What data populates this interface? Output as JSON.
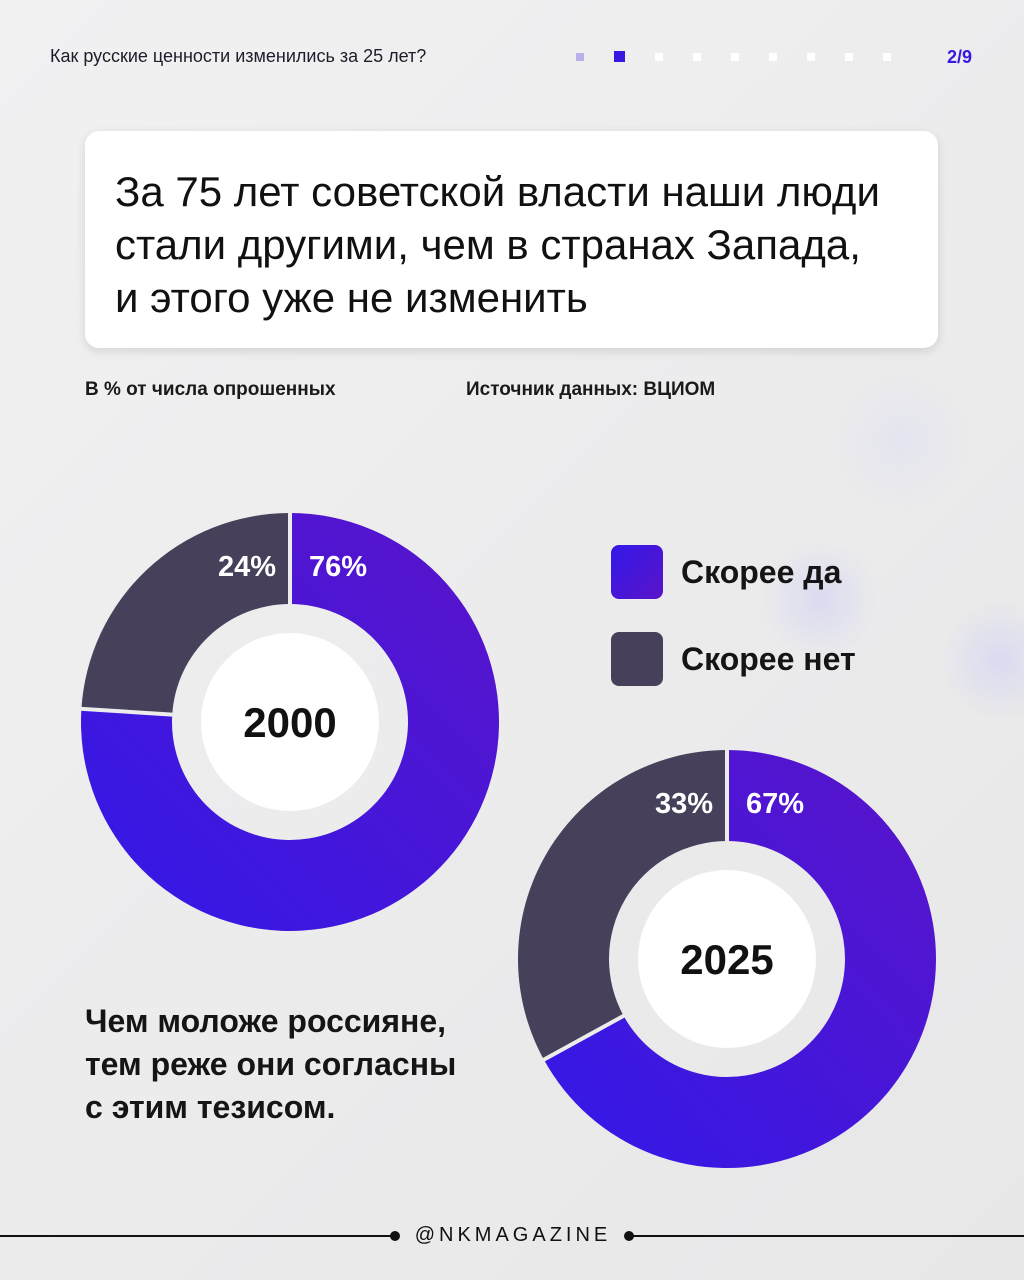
{
  "header": {
    "title": "Как русские ценности изменились за 25 лет?",
    "page_indicator": "2/9",
    "dots_total": 9,
    "dot_current_index": 1
  },
  "headline": "За 75 лет советской власти наши люди стали другими, чем в странах Запада, и этого уже не изменить",
  "meta": {
    "unit": "В % от числа опрошенных",
    "source": "Источник данных: ВЦИОМ"
  },
  "colors": {
    "yes_start": "#3318e8",
    "yes_end": "#5a14c9",
    "no": "#46405a",
    "accent": "#3a17e0"
  },
  "chart_data": [
    {
      "type": "pie",
      "center_label": "2000",
      "categories": [
        "Скорее да",
        "Скорее нет"
      ],
      "values": [
        76,
        24
      ],
      "value_labels": [
        "76%",
        "24%"
      ],
      "colors": [
        "#3318e8",
        "#46405a"
      ]
    },
    {
      "type": "pie",
      "center_label": "2025",
      "categories": [
        "Скорее да",
        "Скорее нет"
      ],
      "values": [
        67,
        33
      ],
      "value_labels": [
        "67%",
        "33%"
      ],
      "colors": [
        "#3318e8",
        "#46405a"
      ]
    }
  ],
  "legend": [
    {
      "label": "Скорее да",
      "color": "yes"
    },
    {
      "label": "Скорее нет",
      "color": "no"
    }
  ],
  "note": "Чем моложе россияне, тем реже они согласны с этим тезисом.",
  "footer": {
    "handle": "@NKMAGAZINE"
  }
}
